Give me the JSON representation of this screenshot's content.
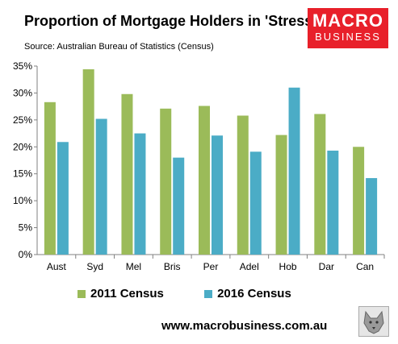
{
  "title": "Proportion of Mortgage Holders in 'Stress'",
  "source": "Source: Australian Bureau of Statistics (Census)",
  "logo": {
    "line1": "MACRO",
    "line2": "BUSINESS",
    "color": "#e8202a"
  },
  "website": "www.macrobusiness.com.au",
  "chart_data": {
    "type": "bar",
    "categories": [
      "Aust",
      "Syd",
      "Mel",
      "Bris",
      "Per",
      "Adel",
      "Hob",
      "Dar",
      "Can"
    ],
    "series": [
      {
        "name": "2011 Census",
        "color": "#9bbb59",
        "values": [
          28.3,
          34.4,
          29.8,
          27.1,
          27.6,
          25.8,
          22.2,
          26.1,
          20.0
        ]
      },
      {
        "name": "2016 Census",
        "color": "#4bacc6",
        "values": [
          20.9,
          25.2,
          22.5,
          18.0,
          22.1,
          19.1,
          31.0,
          19.3,
          14.2
        ]
      }
    ],
    "ylim": [
      0,
      35
    ],
    "yticks": [
      "0%",
      "5%",
      "10%",
      "15%",
      "20%",
      "25%",
      "30%",
      "35%"
    ],
    "grid": false,
    "legend_position": "bottom"
  }
}
